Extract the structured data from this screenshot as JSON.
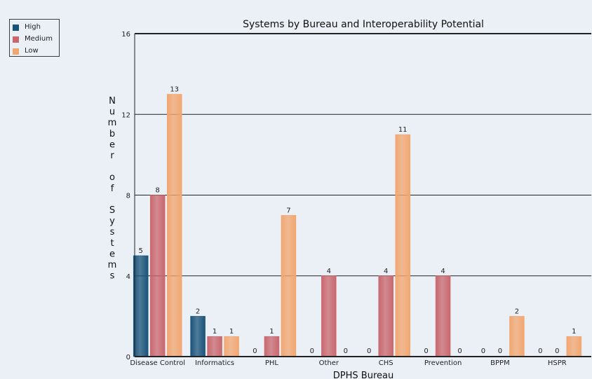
{
  "chart_data": {
    "type": "bar",
    "title": "Systems by Bureau and Interoperability Potential",
    "xlabel": "DPHS Bureau",
    "ylabel": "Number of Systems",
    "ylim": [
      0,
      16
    ],
    "yticks": [
      0,
      4,
      8,
      12,
      16
    ],
    "grid": true,
    "legend_position": "top-left",
    "categories": [
      "Disease Control",
      "Informatics",
      "PHL",
      "Other",
      "CHS",
      "Prevention",
      "BPPM",
      "HSPR"
    ],
    "series": [
      {
        "name": "High",
        "color": "#1a5379",
        "values": [
          5,
          2,
          0,
          0,
          0,
          0,
          0,
          0
        ]
      },
      {
        "name": "Medium",
        "color": "#c9676e",
        "values": [
          8,
          1,
          1,
          4,
          4,
          4,
          0,
          0
        ]
      },
      {
        "name": "Low",
        "color": "#f2a670",
        "values": [
          13,
          1,
          7,
          0,
          11,
          0,
          2,
          1
        ]
      }
    ]
  }
}
